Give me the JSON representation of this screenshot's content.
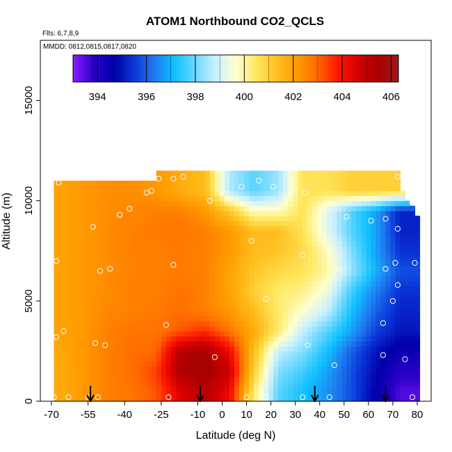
{
  "chart_data": {
    "type": "heatmap",
    "title": "ATOM1 Northbound CO2_QCLS",
    "subtitle_flights": "Flts: 6,7,8,9",
    "subtitle_dates": "MMDD: 0812,0815,0817,0820",
    "xlabel": "Latitude (deg N)",
    "ylabel": "Altitude (m)",
    "xlim": [
      -70,
      80
    ],
    "ylim": [
      0,
      18000
    ],
    "x_ticks": [
      -70,
      -55,
      -40,
      -25,
      -10,
      0,
      10,
      20,
      30,
      40,
      50,
      60,
      70,
      80
    ],
    "x_tick_labels": [
      "-70",
      "-55",
      "-40",
      "-25",
      "-10",
      "0",
      "10",
      "20",
      "30",
      "40",
      "50",
      "60",
      "70",
      "80"
    ],
    "y_ticks": [
      0,
      5000,
      10000,
      15000
    ],
    "y_tick_labels": [
      "0",
      "5000",
      "10000",
      "15000"
    ],
    "colorbar": {
      "min": 393,
      "max": 406.3,
      "ticks": [
        394,
        396,
        398,
        400,
        402,
        404,
        406
      ],
      "tick_labels": [
        "394",
        "396",
        "398",
        "400",
        "402",
        "404",
        "406"
      ],
      "colors": [
        "#8b1cff",
        "#2a00c8",
        "#0000a8",
        "#0a36d8",
        "#1f7bf0",
        "#10c0ff",
        "#6cd8ff",
        "#c8f0ff",
        "#ffffd0",
        "#ffe860",
        "#ffc020",
        "#ff9c00",
        "#ff6a00",
        "#ff1800",
        "#d40000",
        "#a80000",
        "#9a1a1a"
      ]
    },
    "field": {
      "lat_centers": [
        -67,
        -57,
        -47,
        -37,
        -27,
        -17,
        -7,
        3,
        13,
        23,
        33,
        43,
        53,
        63,
        73
      ],
      "alt_centers": [
        500,
        1500,
        2500,
        3500,
        4500,
        5500,
        6500,
        7500,
        8500,
        9500,
        10500
      ],
      "co2": [
        [
          401.8,
          402.2,
          402.6,
          402.8,
          403.2,
          404.5,
          405.2,
          404.2,
          400.4,
          397.8,
          397.2,
          396.6,
          395.8,
          394.6,
          393.5
        ],
        [
          401.8,
          402.2,
          402.6,
          402.9,
          403.4,
          405.4,
          405.6,
          404.8,
          401.0,
          398.2,
          397.6,
          396.8,
          395.8,
          394.8,
          393.9
        ],
        [
          401.9,
          402.2,
          402.6,
          402.9,
          403.0,
          405.2,
          405.5,
          404.2,
          401.4,
          398.8,
          398.2,
          397.2,
          396.0,
          395.0,
          394.4
        ],
        [
          402.0,
          402.2,
          402.6,
          402.8,
          402.8,
          403.2,
          403.6,
          402.8,
          401.8,
          400.4,
          398.8,
          397.8,
          396.8,
          395.6,
          395.0
        ],
        [
          402.0,
          402.2,
          402.5,
          402.6,
          402.7,
          402.9,
          402.6,
          402.2,
          401.4,
          400.4,
          399.6,
          398.8,
          397.2,
          396.0,
          395.2
        ],
        [
          402.0,
          402.2,
          402.4,
          402.6,
          402.6,
          402.8,
          402.6,
          402.0,
          401.0,
          400.4,
          400.2,
          399.4,
          397.6,
          396.4,
          395.4
        ],
        [
          402.0,
          402.2,
          402.4,
          402.6,
          402.6,
          402.7,
          402.6,
          402.0,
          401.2,
          400.8,
          400.6,
          400.0,
          398.4,
          397.0,
          395.8
        ],
        [
          402.0,
          402.2,
          402.4,
          402.6,
          402.6,
          402.7,
          402.6,
          402.2,
          401.4,
          401.2,
          400.8,
          399.8,
          398.2,
          396.8,
          395.4
        ],
        [
          402.0,
          402.2,
          402.4,
          402.6,
          402.7,
          402.8,
          402.6,
          402.2,
          401.4,
          401.4,
          400.6,
          399.2,
          397.8,
          396.8,
          395.2
        ],
        [
          402.0,
          402.2,
          402.4,
          402.5,
          402.6,
          402.6,
          402.2,
          401.2,
          399.8,
          399.8,
          400.6,
          399.2,
          397.8,
          396.8,
          395.2
        ],
        [
          402.0,
          402.2,
          402.4,
          402.4,
          402.2,
          401.8,
          401.4,
          398.6,
          397.8,
          398.4,
          400.6,
          400.6,
          401.0,
          401.0,
          401.0
        ]
      ],
      "coverage": {
        "left_lat": -69,
        "right_lat": 80,
        "top_alt_south": 11000,
        "top_alt_north": 11500,
        "north_top_start_lat": -28,
        "north_top_end_lat": 72
      }
    },
    "sample_points": [
      {
        "lat": -69,
        "alt": 200
      },
      {
        "lat": -63,
        "alt": 200
      },
      {
        "lat": -55,
        "alt": 200
      },
      {
        "lat": -51,
        "alt": 200
      },
      {
        "lat": -22,
        "alt": 200
      },
      {
        "lat": 10,
        "alt": 200
      },
      {
        "lat": 18,
        "alt": 200
      },
      {
        "lat": 33,
        "alt": 200
      },
      {
        "lat": 44,
        "alt": 200
      },
      {
        "lat": 78,
        "alt": 200
      },
      {
        "lat": -68,
        "alt": 3200
      },
      {
        "lat": -65,
        "alt": 3500
      },
      {
        "lat": -52,
        "alt": 2900
      },
      {
        "lat": -48,
        "alt": 2800
      },
      {
        "lat": -23,
        "alt": 3800
      },
      {
        "lat": -3,
        "alt": 2200
      },
      {
        "lat": 35,
        "alt": 2800
      },
      {
        "lat": 46,
        "alt": 1800
      },
      {
        "lat": 66,
        "alt": 2300
      },
      {
        "lat": 75,
        "alt": 2100
      },
      {
        "lat": 66,
        "alt": 3900
      },
      {
        "lat": -68,
        "alt": 7000
      },
      {
        "lat": -50,
        "alt": 6500
      },
      {
        "lat": -46,
        "alt": 6600
      },
      {
        "lat": -20,
        "alt": 6800
      },
      {
        "lat": 18,
        "alt": 5100
      },
      {
        "lat": 70,
        "alt": 5000
      },
      {
        "lat": 72,
        "alt": 5800
      },
      {
        "lat": 67,
        "alt": 6600
      },
      {
        "lat": 71,
        "alt": 6900
      },
      {
        "lat": 79,
        "alt": 6900
      },
      {
        "lat": 33,
        "alt": 7300
      },
      {
        "lat": 48,
        "alt": 6600
      },
      {
        "lat": 12,
        "alt": 8000
      },
      {
        "lat": -53,
        "alt": 8700
      },
      {
        "lat": -42,
        "alt": 9300
      },
      {
        "lat": -38,
        "alt": 9600
      },
      {
        "lat": -31,
        "alt": 10400
      },
      {
        "lat": -29,
        "alt": 10500
      },
      {
        "lat": -5,
        "alt": 10000
      },
      {
        "lat": 2,
        "alt": 10000
      },
      {
        "lat": 8,
        "alt": 10700
      },
      {
        "lat": 15,
        "alt": 11000
      },
      {
        "lat": 21,
        "alt": 10700
      },
      {
        "lat": 34,
        "alt": 10400
      },
      {
        "lat": 41,
        "alt": 9700
      },
      {
        "lat": 51,
        "alt": 9200
      },
      {
        "lat": 61,
        "alt": 9000
      },
      {
        "lat": 67,
        "alt": 9100
      },
      {
        "lat": 72,
        "alt": 8600
      },
      {
        "lat": 78,
        "alt": 9900
      },
      {
        "lat": 72,
        "alt": 11200
      },
      {
        "lat": -26,
        "alt": 11100
      },
      {
        "lat": -20,
        "alt": 11100
      },
      {
        "lat": -16,
        "alt": 11200
      },
      {
        "lat": -67,
        "alt": 10900
      }
    ],
    "flight_arrows_lat": [
      -54,
      -9,
      38,
      67
    ]
  }
}
